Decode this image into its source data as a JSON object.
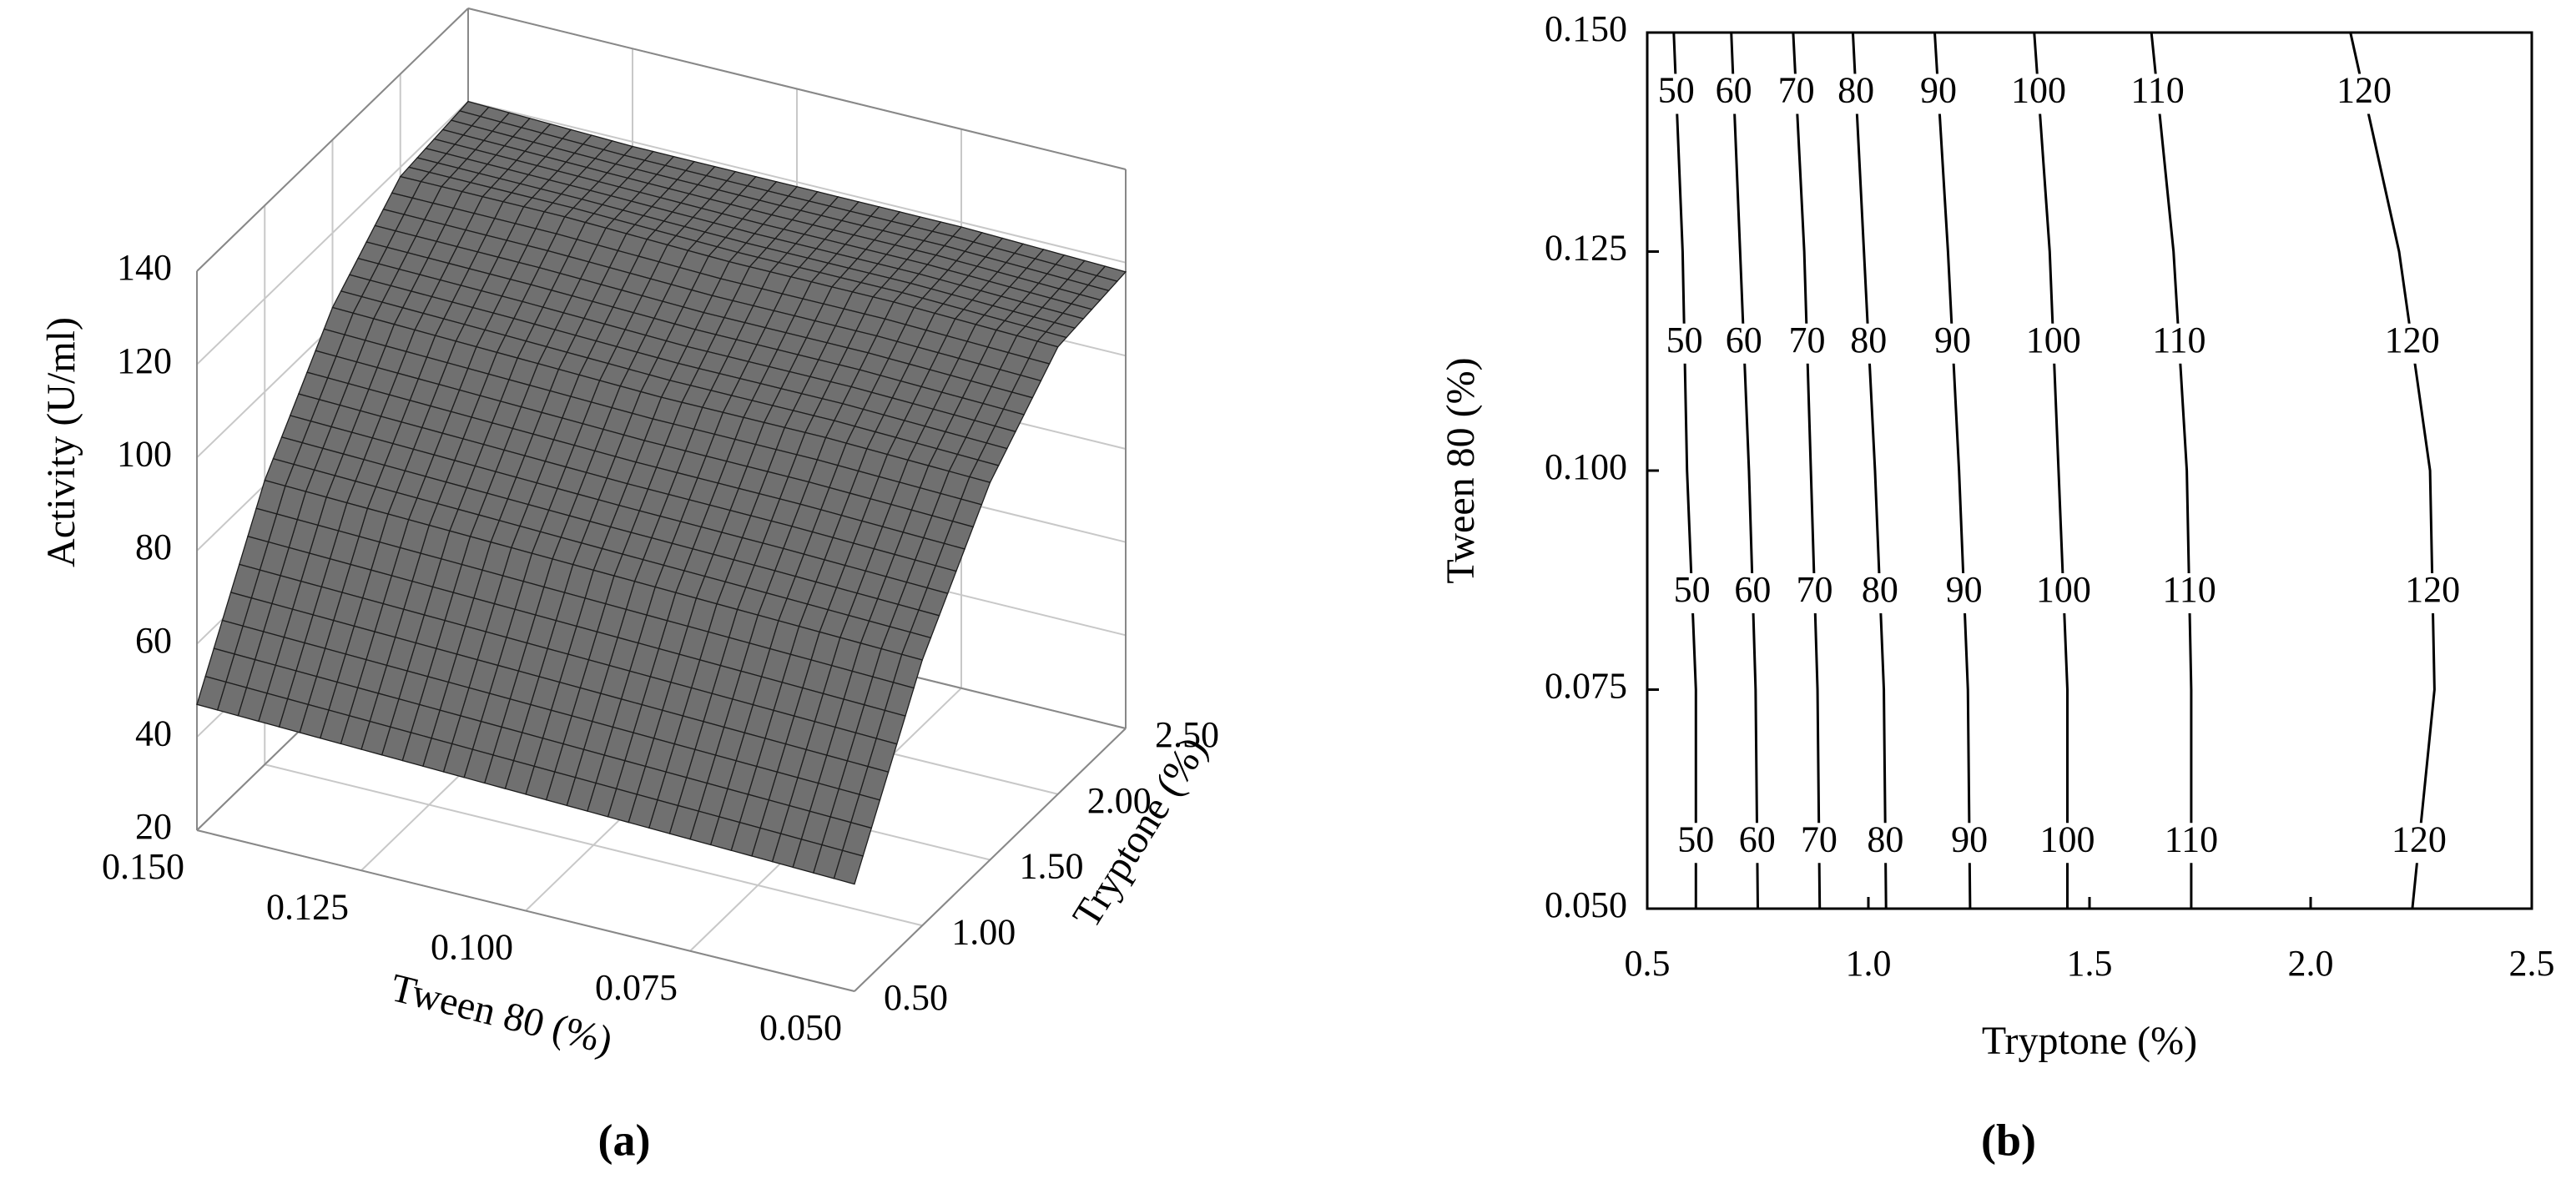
{
  "chart_data": [
    {
      "type": "surface",
      "x_label": "Tryptone (%)",
      "y_label": "Tween 80 (%)",
      "z_label": "Activity (U/ml)",
      "panel_label": "(a)",
      "x": [
        0.5,
        1.0,
        1.5,
        2.0,
        2.5
      ],
      "y": [
        0.05,
        0.075,
        0.1,
        0.125,
        0.15
      ],
      "z": [
        [
          43,
          77,
          101,
          116,
          118
        ],
        [
          44,
          78,
          102,
          117,
          119
        ],
        [
          45,
          79,
          102,
          117,
          119
        ],
        [
          46,
          80,
          103,
          118,
          119
        ],
        [
          47,
          81,
          104,
          118,
          120
        ]
      ],
      "color": "#707070",
      "xlim": [
        0.5,
        2.5
      ],
      "xticks": [
        {
          "value": 0.5,
          "label": "0.50"
        },
        {
          "value": 1.0,
          "label": "1.00"
        },
        {
          "value": 1.5,
          "label": "1.50"
        },
        {
          "value": 2.0,
          "label": "2.00"
        },
        {
          "value": 2.5,
          "label": "2.50"
        }
      ],
      "ylim": [
        0.05,
        0.15
      ],
      "yticks": [
        {
          "value": 0.15,
          "label": "0.150"
        },
        {
          "value": 0.125,
          "label": "0.125"
        },
        {
          "value": 0.1,
          "label": "0.100"
        },
        {
          "value": 0.075,
          "label": "0.075"
        },
        {
          "value": 0.05,
          "label": "0.050"
        }
      ],
      "zlim": [
        20,
        140
      ],
      "zticks": [
        20,
        40,
        60,
        80,
        100,
        120,
        140
      ],
      "grid": true
    },
    {
      "type": "contour",
      "x_label": "Tryptone (%)",
      "y_label": "Tween 80 (%)",
      "panel_label": "(b)",
      "y": [
        0.05,
        0.075,
        0.1,
        0.125,
        0.15
      ],
      "contours": [
        {
          "level": 50,
          "x": [
            0.61,
            0.61,
            0.59,
            0.58,
            0.56
          ]
        },
        {
          "level": 60,
          "x": [
            0.75,
            0.745,
            0.73,
            0.71,
            0.69
          ]
        },
        {
          "level": 70,
          "x": [
            0.89,
            0.885,
            0.87,
            0.855,
            0.83
          ]
        },
        {
          "level": 80,
          "x": [
            1.04,
            1.035,
            1.015,
            0.99,
            0.965
          ]
        },
        {
          "level": 90,
          "x": [
            1.23,
            1.225,
            1.205,
            1.18,
            1.15
          ]
        },
        {
          "level": 100,
          "x": [
            1.45,
            1.45,
            1.43,
            1.41,
            1.375
          ]
        },
        {
          "level": 110,
          "x": [
            1.73,
            1.73,
            1.72,
            1.69,
            1.64
          ]
        },
        {
          "level": 120,
          "x": [
            2.23,
            2.28,
            2.27,
            2.2,
            2.09
          ]
        }
      ],
      "color": "#000000",
      "xlim": [
        0.5,
        2.5
      ],
      "xticks": [
        0.5,
        {
          "value": 1.0,
          "label": "1.0"
        },
        1.5,
        {
          "value": 2.0,
          "label": "2.0"
        },
        2.5
      ],
      "ylim": [
        0.05,
        0.15
      ],
      "yticks": [
        {
          "value": 0.05,
          "label": "0.050"
        },
        {
          "value": 0.075,
          "label": "0.075"
        },
        {
          "value": 0.1,
          "label": "0.100"
        },
        {
          "value": 0.125,
          "label": "0.125"
        },
        {
          "value": 0.15,
          "label": "0.150"
        }
      ]
    }
  ]
}
